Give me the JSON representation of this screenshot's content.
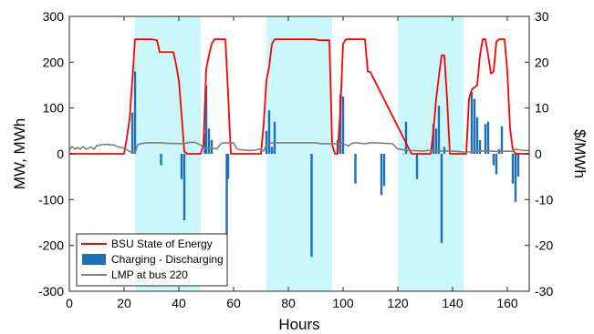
{
  "chart_data": {
    "type": "bar",
    "title": "",
    "xlabel": "Hours",
    "ylabel_left": "MW, MWh",
    "ylabel_right": "$/MWh",
    "xlim": [
      0,
      168
    ],
    "ylim_left": [
      -300,
      300
    ],
    "ylim_right": [
      -30,
      30
    ],
    "xticks": [
      0,
      20,
      40,
      60,
      80,
      100,
      120,
      140,
      160
    ],
    "yticks_left": [
      -300,
      -200,
      -100,
      0,
      100,
      200,
      300
    ],
    "yticks_right": [
      -30,
      -20,
      -10,
      0,
      10,
      20,
      30
    ],
    "grid": false,
    "legend_position": "bottom-left",
    "shaded_x_ranges": [
      [
        24,
        48
      ],
      [
        72,
        96
      ],
      [
        120,
        144
      ]
    ],
    "shade_color": "#c9f7fa",
    "series": [
      {
        "name": "BSU State of Energy",
        "kind": "line",
        "axis": "left",
        "color": "#ff0000",
        "x": [
          0,
          20,
          21,
          22,
          23,
          24,
          25,
          30,
          32,
          33,
          38,
          39,
          40,
          41,
          42,
          43,
          48,
          49,
          50,
          51,
          52,
          53,
          54,
          57,
          58,
          59,
          60,
          70,
          71,
          72,
          73,
          74,
          75,
          89,
          90,
          91,
          95,
          96,
          97,
          98,
          99,
          100,
          101,
          108,
          109,
          110,
          125,
          126,
          127,
          132,
          133,
          134,
          135,
          136,
          137,
          138,
          139,
          140,
          145,
          146,
          147,
          148,
          149,
          150,
          151,
          152,
          153,
          154,
          155,
          156,
          157,
          158,
          159,
          160,
          161,
          162,
          163,
          164,
          168
        ],
        "y": [
          0,
          0,
          35,
          75,
          160,
          250,
          250,
          250,
          248,
          222,
          222,
          195,
          160,
          85,
          5,
          0,
          0,
          20,
          185,
          215,
          240,
          250,
          250,
          250,
          130,
          0,
          0,
          0,
          65,
          160,
          190,
          240,
          250,
          250,
          250,
          248,
          248,
          20,
          0,
          0,
          95,
          240,
          250,
          250,
          180,
          178,
          0,
          0,
          0,
          0,
          50,
          120,
          170,
          215,
          215,
          120,
          0,
          0,
          0,
          120,
          140,
          145,
          150,
          215,
          250,
          250,
          215,
          175,
          180,
          245,
          250,
          250,
          250,
          180,
          55,
          10,
          0,
          0,
          0
        ]
      },
      {
        "name": "Charging - Discharging",
        "kind": "bar",
        "axis": "left",
        "color": "#1f6fb8",
        "x": [
          23,
          24,
          33.5,
          41,
          42,
          49.5,
          50,
          51,
          52,
          57.5,
          58,
          72,
          73,
          74,
          75,
          88.5,
          98,
          99,
          100,
          104.5,
          114,
          115,
          122,
          123,
          127,
          133,
          134,
          135,
          136,
          137,
          147,
          148,
          149,
          150,
          152,
          153,
          155,
          156,
          157,
          158,
          162,
          163,
          164
        ],
        "y": [
          90,
          180,
          -25,
          -55,
          -145,
          45,
          150,
          55,
          30,
          -175,
          -55,
          50,
          95,
          15,
          70,
          -225,
          30,
          130,
          125,
          -65,
          -90,
          -70,
          0,
          70,
          -55,
          65,
          55,
          105,
          -195,
          15,
          135,
          120,
          80,
          30,
          65,
          70,
          -25,
          -45,
          10,
          60,
          -65,
          -105,
          -50
        ]
      },
      {
        "name": "LMP at bus 220",
        "kind": "line",
        "axis": "right",
        "color": "#7f7f7f",
        "x": [
          0,
          1,
          2,
          3,
          4,
          5,
          6,
          7,
          8,
          9,
          10,
          11,
          12,
          13,
          14,
          15,
          16,
          17,
          18,
          19,
          20,
          21,
          22,
          23,
          24,
          25,
          26,
          27,
          28,
          30,
          34,
          35,
          36,
          42,
          43,
          44,
          46,
          48,
          49,
          50,
          54,
          55,
          56,
          60,
          61,
          62,
          66,
          68,
          69,
          70,
          71,
          72,
          74,
          76,
          80,
          90,
          92,
          94,
          96,
          100,
          102,
          103,
          104,
          105,
          108,
          110,
          112,
          118,
          120,
          121,
          122,
          124,
          126,
          128,
          130,
          131,
          132,
          134,
          136,
          140,
          142,
          144,
          146,
          148,
          150,
          152,
          154,
          156,
          158,
          160,
          162,
          163,
          164,
          165,
          166,
          168
        ],
        "y": [
          0.8,
          1.6,
          1.0,
          1.4,
          1.0,
          1.6,
          1.0,
          1.2,
          1.5,
          1.0,
          1.8,
          1.8,
          2.1,
          2.0,
          2.1,
          1.9,
          2.0,
          1.7,
          1.5,
          1.4,
          1.2,
          0.9,
          0.5,
          0.3,
          0.2,
          2.0,
          2.2,
          2.3,
          2.4,
          2.4,
          2.4,
          2.3,
          2.3,
          2.2,
          2.4,
          2.5,
          2.5,
          1.9,
          1.3,
          1.2,
          1.1,
          2.0,
          2.4,
          2.4,
          1.2,
          0.9,
          0.7,
          0.8,
          1.0,
          0.9,
          0.6,
          2.0,
          2.4,
          2.4,
          2.4,
          2.4,
          2.2,
          2.2,
          2.2,
          2.2,
          1.7,
          2.2,
          2.4,
          2.4,
          2.2,
          2.4,
          2.4,
          2.2,
          1.0,
          1.0,
          0.9,
          0.7,
          0.7,
          0.6,
          0.6,
          0.8,
          0.6,
          0.7,
          0.6,
          0.6,
          0.5,
          0.4,
          0.4,
          0.5,
          0.6,
          0.6,
          0.6,
          0.5,
          0.5,
          0.6,
          0.5,
          1.0,
          0.9,
          0.8,
          0.7,
          0.7
        ]
      }
    ]
  }
}
